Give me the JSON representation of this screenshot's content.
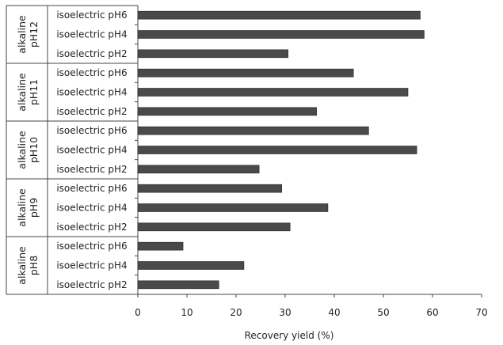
{
  "chart_data": {
    "type": "bar",
    "orientation": "horizontal",
    "xlabel": "Recovery yield (%)",
    "xlim": [
      0,
      70
    ],
    "xticks": [
      0,
      10,
      20,
      30,
      40,
      50,
      60,
      70
    ],
    "grid": false,
    "groups": [
      {
        "label": "alkaline pH12",
        "lines": [
          "alkaline",
          "pH12"
        ],
        "bars": [
          {
            "label": "isoelectric pH6",
            "value": 57.5
          },
          {
            "label": "isoelectric pH4",
            "value": 58.3
          },
          {
            "label": "isoelectric pH2",
            "value": 30.6
          }
        ]
      },
      {
        "label": "alkaline pH11",
        "lines": [
          "alkaline",
          "pH11"
        ],
        "bars": [
          {
            "label": "isoelectric pH6",
            "value": 43.9
          },
          {
            "label": "isoelectric pH4",
            "value": 55.0
          },
          {
            "label": "isoelectric pH2",
            "value": 36.4
          }
        ]
      },
      {
        "label": "alkaline pH10",
        "lines": [
          "alkaline",
          "pH10"
        ],
        "bars": [
          {
            "label": "isoelectric pH6",
            "value": 47.0
          },
          {
            "label": "isoelectric pH4",
            "value": 56.8
          },
          {
            "label": "isoelectric pH2",
            "value": 24.7
          }
        ]
      },
      {
        "label": "alkaline pH9",
        "lines": [
          "alkaline",
          "pH9"
        ],
        "bars": [
          {
            "label": "isoelectric pH6",
            "value": 29.3
          },
          {
            "label": "isoelectric pH4",
            "value": 38.7
          },
          {
            "label": "isoelectric pH2",
            "value": 31.0
          }
        ]
      },
      {
        "label": "alkaline pH8",
        "lines": [
          "alkaline",
          "pH8"
        ],
        "bars": [
          {
            "label": "isoelectric pH6",
            "value": 9.2
          },
          {
            "label": "isoelectric pH4",
            "value": 21.6
          },
          {
            "label": "isoelectric pH2",
            "value": 16.5
          }
        ]
      }
    ],
    "colors": {
      "bar": "#4a4a4a",
      "axis": "#444444",
      "text": "#222222"
    }
  }
}
